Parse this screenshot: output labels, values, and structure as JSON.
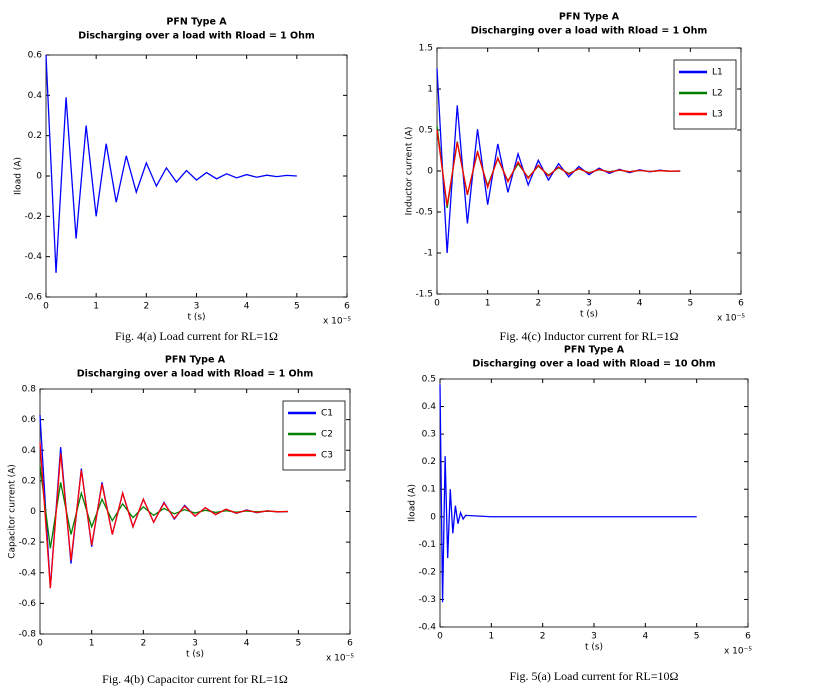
{
  "chart_data": [
    {
      "type": "line",
      "title": "PFN Type A",
      "subtitle": "Discharging over a load with Rload = 1 Ohm",
      "xlabel": "t (s)",
      "ylabel": "Iload (A)",
      "x_exponent": "x 10⁻⁵",
      "xlim": [
        0,
        6
      ],
      "xticks": [
        0,
        1,
        2,
        3,
        4,
        5,
        6
      ],
      "ylim": [
        -0.6,
        0.6
      ],
      "yticks": [
        -0.6,
        -0.4,
        -0.2,
        0,
        0.2,
        0.4,
        0.6
      ],
      "series": [
        {
          "color": "#0000ff",
          "x": [
            0,
            0.2,
            0.4,
            0.6,
            0.8,
            1.0,
            1.2,
            1.4,
            1.6,
            1.8,
            2.0,
            2.2,
            2.4,
            2.6,
            2.8,
            3.0,
            3.2,
            3.4,
            3.6,
            3.8,
            4.0,
            4.2,
            4.4,
            4.6,
            4.8,
            5.0
          ],
          "values": [
            0.6,
            -0.48,
            0.39,
            -0.31,
            0.25,
            -0.2,
            0.16,
            -0.13,
            0.1,
            -0.08,
            0.065,
            -0.05,
            0.04,
            -0.03,
            0.027,
            -0.02,
            0.017,
            -0.014,
            0.011,
            -0.009,
            0.007,
            -0.006,
            0.004,
            -0.003,
            0.003,
            0
          ]
        }
      ],
      "caption": "Fig. 4(a) Load current for RL=1Ω"
    },
    {
      "type": "line",
      "title": "PFN Type A",
      "subtitle": "Discharging over a load with Rload = 1 Ohm",
      "xlabel": "t (s)",
      "ylabel": "Inductor current (A)",
      "x_exponent": "x 10⁻⁵",
      "xlim": [
        0,
        6
      ],
      "xticks": [
        0,
        1,
        2,
        3,
        4,
        5,
        6
      ],
      "ylim": [
        -1.5,
        1.5
      ],
      "yticks": [
        -1.5,
        -1,
        -0.5,
        0,
        0.5,
        1,
        1.5
      ],
      "legend": "upper right",
      "series": [
        {
          "name": "L1",
          "color": "#0000ff",
          "x": [
            0,
            0.2,
            0.4,
            0.6,
            0.8,
            1.0,
            1.2,
            1.4,
            1.6,
            1.8,
            2.0,
            2.2,
            2.4,
            2.6,
            2.8,
            3.0,
            3.2,
            3.4,
            3.6,
            3.8,
            4.0,
            4.2,
            4.4,
            4.6,
            4.8
          ],
          "values": [
            1.25,
            -1.0,
            0.8,
            -0.64,
            0.51,
            -0.41,
            0.33,
            -0.26,
            0.21,
            -0.17,
            0.13,
            -0.11,
            0.09,
            -0.07,
            0.055,
            -0.045,
            0.035,
            -0.03,
            0.02,
            -0.02,
            0.015,
            -0.01,
            0.01,
            -0.005,
            0
          ]
        },
        {
          "name": "L2",
          "color": "#008000",
          "x": [
            0,
            0.2,
            0.4,
            0.6,
            0.8,
            1.0,
            1.2,
            1.4,
            1.6,
            1.8,
            2.0,
            2.2,
            2.4,
            2.6,
            2.8,
            3.0,
            3.2,
            3.4,
            3.6,
            3.8,
            4.0,
            4.2,
            4.4,
            4.6,
            4.8
          ],
          "values": [
            0.55,
            -0.45,
            0.36,
            -0.29,
            0.23,
            -0.18,
            0.15,
            -0.12,
            0.09,
            -0.08,
            0.06,
            -0.05,
            0.04,
            -0.03,
            0.025,
            -0.02,
            0.015,
            -0.01,
            0.01,
            -0.008,
            0.006,
            -0.005,
            0.004,
            -0.002,
            0
          ]
        },
        {
          "name": "L3",
          "color": "#ff0000",
          "x": [
            0,
            0.2,
            0.4,
            0.6,
            0.8,
            1.0,
            1.2,
            1.4,
            1.6,
            1.8,
            2.0,
            2.2,
            2.4,
            2.6,
            2.8,
            3.0,
            3.2,
            3.4,
            3.6,
            3.8,
            4.0,
            4.2,
            4.4,
            4.6,
            4.8
          ],
          "values": [
            0.5,
            -0.42,
            0.35,
            -0.29,
            0.24,
            -0.2,
            0.16,
            -0.13,
            0.11,
            -0.09,
            0.07,
            -0.06,
            0.05,
            -0.04,
            0.03,
            -0.025,
            0.02,
            -0.015,
            0.012,
            -0.01,
            0.008,
            -0.006,
            0.004,
            -0.002,
            0
          ]
        }
      ],
      "caption": "Fig. 4(c) Inductor current for RL=1Ω"
    },
    {
      "type": "line",
      "title": "PFN Type A",
      "subtitle": "Discharging over a load with Rload = 1 Ohm",
      "xlabel": "t (s)",
      "ylabel": "Capacitor current (A)",
      "x_exponent": "x 10⁻⁵",
      "xlim": [
        0,
        6
      ],
      "xticks": [
        0,
        1,
        2,
        3,
        4,
        5,
        6
      ],
      "ylim": [
        -0.8,
        0.8
      ],
      "yticks": [
        -0.8,
        -0.6,
        -0.4,
        -0.2,
        0,
        0.2,
        0.4,
        0.6,
        0.8
      ],
      "legend": "upper right",
      "series": [
        {
          "name": "C1",
          "color": "#0000ff",
          "x": [
            0,
            0.2,
            0.4,
            0.6,
            0.8,
            1.0,
            1.2,
            1.4,
            1.6,
            1.8,
            2.0,
            2.2,
            2.4,
            2.6,
            2.8,
            3.0,
            3.2,
            3.4,
            3.6,
            3.8,
            4.0,
            4.2,
            4.4,
            4.6,
            4.8
          ],
          "values": [
            0.63,
            -0.5,
            0.42,
            -0.34,
            0.28,
            -0.23,
            0.19,
            -0.15,
            0.12,
            -0.1,
            0.08,
            -0.07,
            0.06,
            -0.05,
            0.04,
            -0.03,
            0.025,
            -0.02,
            0.015,
            -0.012,
            0.01,
            -0.008,
            0.005,
            -0.003,
            0
          ]
        },
        {
          "name": "C2",
          "color": "#008000",
          "x": [
            0,
            0.2,
            0.4,
            0.6,
            0.8,
            1.0,
            1.2,
            1.4,
            1.6,
            1.8,
            2.0,
            2.2,
            2.4,
            2.6,
            2.8,
            3.0,
            3.2,
            3.4,
            3.6,
            3.8,
            4.0,
            4.2,
            4.4,
            4.6,
            4.8
          ],
          "values": [
            0.3,
            -0.24,
            0.19,
            -0.15,
            0.12,
            -0.1,
            0.08,
            -0.06,
            0.05,
            -0.04,
            0.03,
            -0.025,
            0.02,
            -0.015,
            0.012,
            -0.01,
            0.008,
            -0.006,
            0.005,
            -0.004,
            0.003,
            -0.002,
            0.002,
            -0.001,
            0
          ]
        },
        {
          "name": "C3",
          "color": "#ff0000",
          "x": [
            0,
            0.2,
            0.4,
            0.6,
            0.8,
            1.0,
            1.2,
            1.4,
            1.6,
            1.8,
            2.0,
            2.2,
            2.4,
            2.6,
            2.8,
            3.0,
            3.2,
            3.4,
            3.6,
            3.8,
            4.0,
            4.2,
            4.4,
            4.6,
            4.8
          ],
          "values": [
            0.45,
            -0.5,
            0.38,
            -0.32,
            0.27,
            -0.22,
            0.18,
            -0.15,
            0.12,
            -0.1,
            0.08,
            -0.07,
            0.055,
            -0.045,
            0.035,
            -0.03,
            0.025,
            -0.02,
            0.015,
            -0.01,
            0.008,
            -0.006,
            0.004,
            -0.002,
            0
          ]
        }
      ],
      "caption": "Fig. 4(b) Capacitor current for RL=1Ω"
    },
    {
      "type": "line",
      "title": "PFN Type A",
      "subtitle": "Discharging over a load with Rload = 10 Ohm",
      "xlabel": "t (s)",
      "ylabel": "Iload (A)",
      "x_exponent": "x 10⁻⁵",
      "xlim": [
        0,
        6
      ],
      "xticks": [
        0,
        1,
        2,
        3,
        4,
        5,
        6
      ],
      "ylim": [
        -0.4,
        0.5
      ],
      "yticks": [
        -0.4,
        -0.3,
        -0.2,
        -0.1,
        0,
        0.1,
        0.2,
        0.3,
        0.4,
        0.5
      ],
      "series": [
        {
          "color": "#0000ff",
          "x": [
            0,
            0.05,
            0.1,
            0.15,
            0.2,
            0.25,
            0.3,
            0.35,
            0.4,
            0.45,
            0.5,
            1,
            2,
            3,
            4,
            5
          ],
          "values": [
            0.48,
            -0.31,
            0.22,
            -0.15,
            0.1,
            -0.06,
            0.04,
            -0.025,
            0.015,
            -0.008,
            0.005,
            0,
            0,
            0,
            0,
            0
          ]
        }
      ],
      "caption": "Fig. 5(a) Load current for RL=10Ω"
    }
  ]
}
